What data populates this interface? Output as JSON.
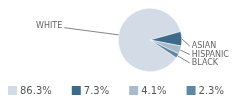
{
  "chart_data": {
    "type": "pie",
    "categories": [
      "WHITE",
      "ASIAN",
      "HISPANIC",
      "BLACK"
    ],
    "values": [
      86.3,
      7.3,
      4.1,
      2.3
    ],
    "value_labels": [
      "86.3%",
      "7.3%",
      "4.1%",
      "2.3%"
    ],
    "colors": [
      "#d3dce6",
      "#3d6a8a",
      "#a9bccb",
      "#5d87a6"
    ],
    "legend": "bottom"
  }
}
